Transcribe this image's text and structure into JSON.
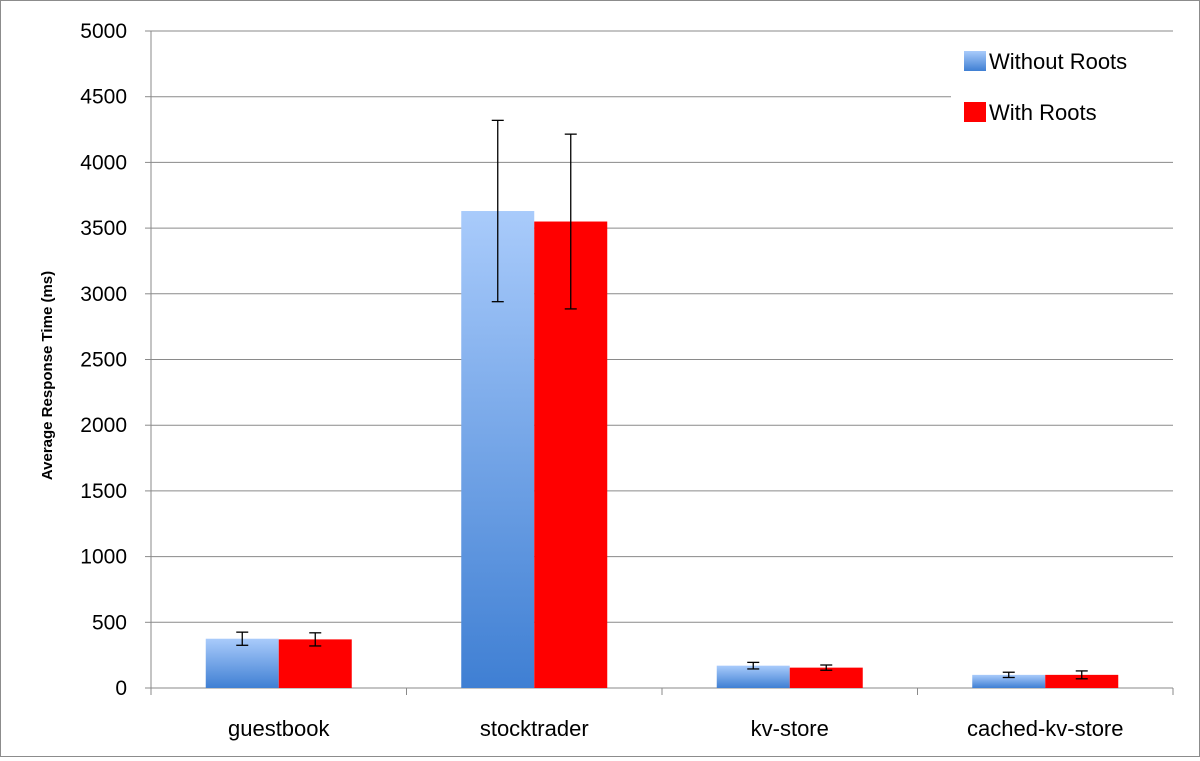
{
  "chart_data": {
    "type": "bar",
    "title": "",
    "xlabel": "",
    "ylabel": "Average Response Time (ms)",
    "ylim": [
      0,
      5000
    ],
    "yticks": [
      0,
      500,
      1000,
      1500,
      2000,
      2500,
      3000,
      3500,
      4000,
      4500,
      5000
    ],
    "grid": "horizontal",
    "legend_position": "top-right",
    "categories": [
      "guestbook",
      "stocktrader",
      "kv-store",
      "cached-kv-store"
    ],
    "series": [
      {
        "name": "Without Roots",
        "color": "#4f8fe0",
        "values": [
          375,
          3630,
          170,
          100
        ],
        "error": [
          50,
          690,
          25,
          20
        ]
      },
      {
        "name": "With Roots",
        "color": "#ff0000",
        "values": [
          370,
          3550,
          155,
          100
        ],
        "error": [
          50,
          665,
          20,
          30
        ]
      }
    ]
  }
}
